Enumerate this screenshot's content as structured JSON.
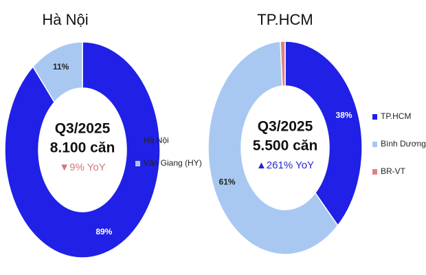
{
  "chart_data": [
    {
      "type": "pie",
      "title": "Hà Nội",
      "categories": [
        "Hà Nội",
        "Văn Giang (HY)"
      ],
      "values": [
        89,
        11
      ],
      "value_labels": [
        "89%",
        "11%"
      ],
      "colors": [
        "#2020e6",
        "#a8c8f2"
      ],
      "center_text": [
        "Q3/2025",
        "8.100 căn",
        "▼9% YoY"
      ],
      "change_color": "#d07878",
      "legend": "right"
    },
    {
      "type": "pie",
      "title": "TP.HCM",
      "categories": [
        "TP.HCM",
        "Bình Dương",
        "BR-VT"
      ],
      "values": [
        38,
        61,
        1
      ],
      "value_labels": [
        "38%",
        "61%",
        null
      ],
      "colors": [
        "#2020e6",
        "#a8c8f2",
        "#d98484"
      ],
      "center_text": [
        "Q3/2025",
        "5.500 căn",
        "▲261% YoY"
      ],
      "change_color": "#2626c4",
      "legend": "right"
    }
  ]
}
